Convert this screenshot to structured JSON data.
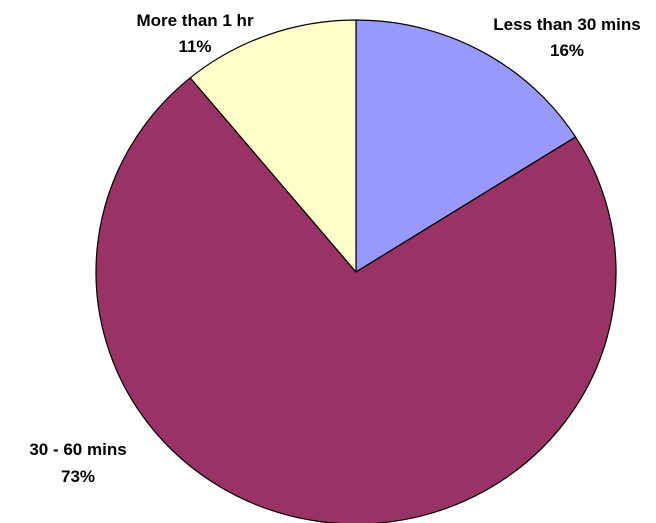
{
  "chart_data": {
    "type": "pie",
    "start_angle_deg": 0,
    "direction": "clockwise",
    "slices": [
      {
        "label": "Less than 30 mins",
        "percent_label": "16%",
        "value": 16,
        "color": "#9999ff"
      },
      {
        "label": "30 - 60 mins",
        "percent_label": "73%",
        "value": 73,
        "color": "#993366"
      },
      {
        "label": "More than 1 hr",
        "percent_label": "11%",
        "value": 11,
        "color": "#ffffcc"
      }
    ],
    "legend": "none",
    "edge_color": "#000000"
  }
}
